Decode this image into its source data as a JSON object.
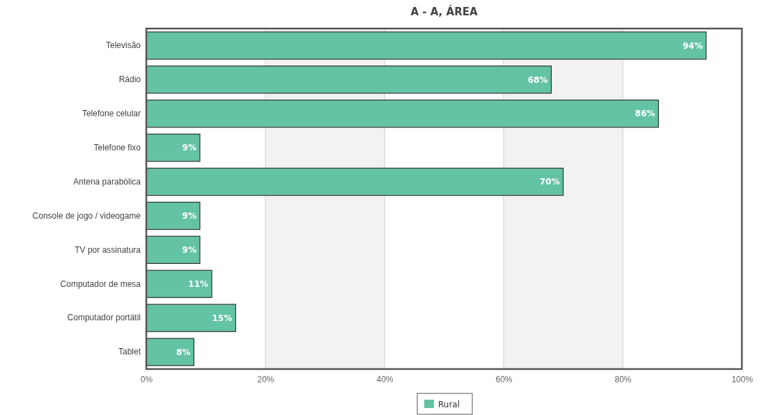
{
  "chart_data": {
    "type": "bar",
    "orientation": "horizontal",
    "title": "A - A, ÁREA",
    "categories": [
      "Televisão",
      "Rádio",
      "Telefone celular",
      "Telefone fixo",
      "Antena parabólica",
      "Console de jogo / videogame",
      "TV por assinatura",
      "Computador de mesa",
      "Computador portátil",
      "Tablet"
    ],
    "series": [
      {
        "name": "Rural",
        "color": "#64c3a5",
        "values": [
          94,
          68,
          86,
          9,
          70,
          9,
          9,
          11,
          15,
          8
        ],
        "value_labels": [
          "94%",
          "68%",
          "86%",
          "9%",
          "70%",
          "9%",
          "9%",
          "11%",
          "15%",
          "8%"
        ]
      }
    ],
    "xlim": [
      0,
      100
    ],
    "xticks": [
      {
        "value": 0,
        "label": "0%"
      },
      {
        "value": 20,
        "label": "20%"
      },
      {
        "value": 40,
        "label": "40%"
      },
      {
        "value": 60,
        "label": "60%"
      },
      {
        "value": 80,
        "label": "80%"
      },
      {
        "value": 100,
        "label": "100%"
      }
    ],
    "grid": "x",
    "legend": "bottom"
  }
}
